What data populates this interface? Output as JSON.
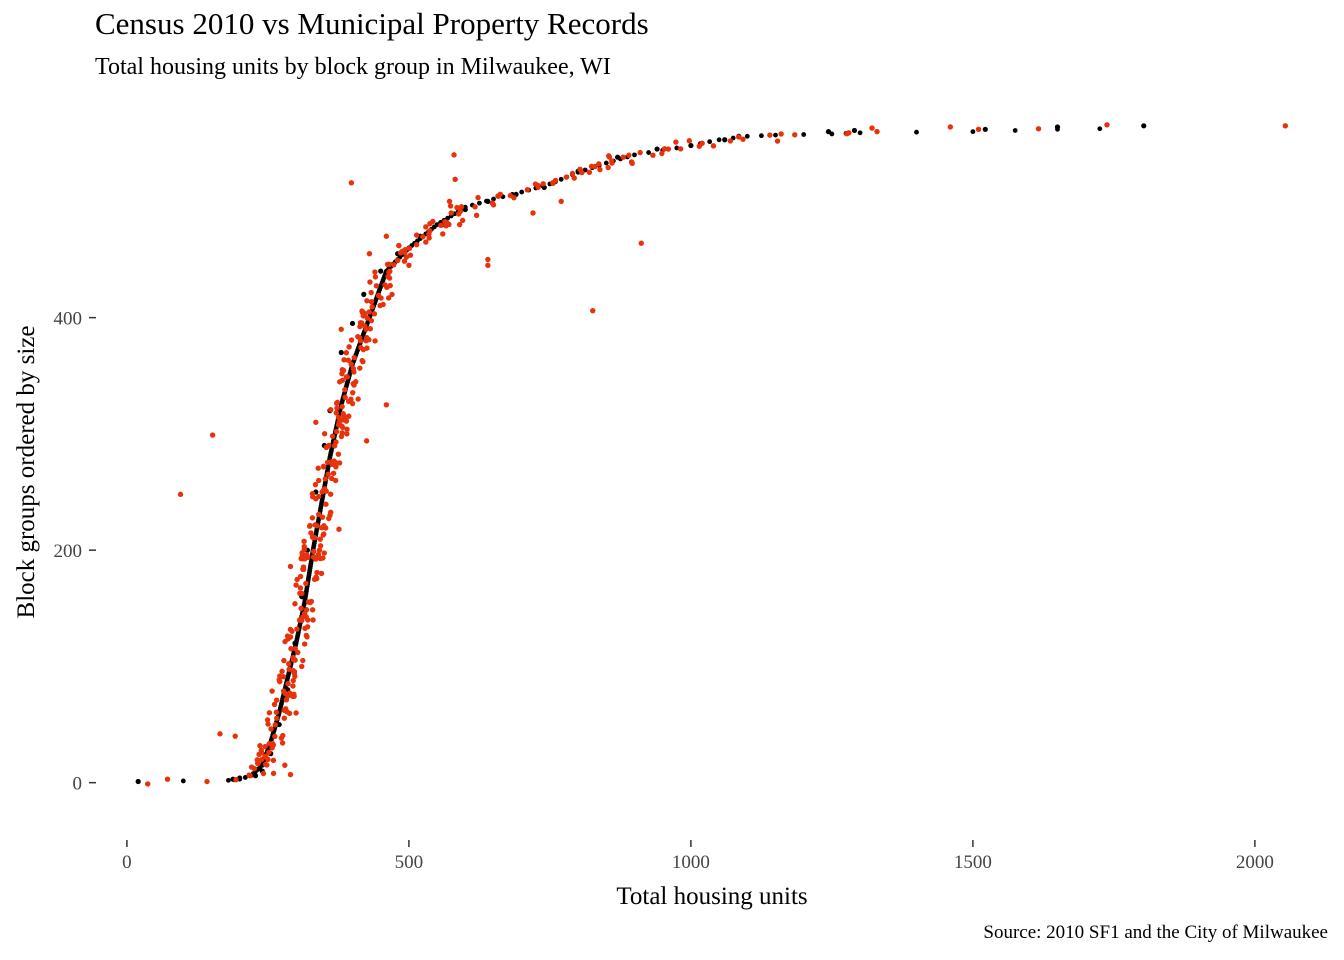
{
  "chart_data": {
    "type": "scatter",
    "title": "Census 2010 vs Municipal Property Records",
    "subtitle": "Total housing units by block group in Milwaukee, WI",
    "caption": "Source: 2010 SF1 and the City of Milwaukee",
    "xlabel": "Total housing units",
    "ylabel": "Block groups ordered by size",
    "xlim": [
      -30,
      2080
    ],
    "ylim": [
      -45,
      570
    ],
    "x_ticks": [
      0,
      500,
      1000,
      1500,
      2000
    ],
    "y_ticks": [
      0,
      200,
      400
    ],
    "grid": false,
    "legend": "none",
    "series": [
      {
        "color": "#000000",
        "curve": [
          [
            20,
            1
          ],
          [
            180,
            2
          ],
          [
            200,
            3
          ],
          [
            220,
            6
          ],
          [
            240,
            15
          ],
          [
            255,
            35
          ],
          [
            270,
            60
          ],
          [
            285,
            90
          ],
          [
            300,
            120
          ],
          [
            315,
            155
          ],
          [
            330,
            200
          ],
          [
            345,
            240
          ],
          [
            360,
            280
          ],
          [
            380,
            325
          ],
          [
            400,
            360
          ],
          [
            430,
            400
          ],
          [
            460,
            440
          ],
          [
            500,
            460
          ],
          [
            550,
            480
          ],
          [
            600,
            495
          ],
          [
            650,
            502
          ],
          [
            700,
            508
          ],
          [
            750,
            515
          ],
          [
            800,
            525
          ],
          [
            850,
            533
          ],
          [
            900,
            540
          ],
          [
            950,
            544
          ],
          [
            1000,
            548
          ],
          [
            1050,
            553
          ],
          [
            1100,
            556
          ],
          [
            1150,
            557
          ],
          [
            1250,
            558
          ],
          [
            1300,
            559
          ],
          [
            1500,
            560
          ],
          [
            1650,
            562
          ],
          [
            1800,
            563
          ]
        ],
        "points": [
          [
            20,
            1
          ],
          [
            188,
            3
          ],
          [
            200,
            4
          ],
          [
            1244,
            560
          ],
          [
            1290,
            561
          ],
          [
            1522,
            562
          ],
          [
            1650,
            564
          ],
          [
            1803,
            565
          ],
          [
            1085,
            556
          ],
          [
            1060,
            553
          ],
          [
            1000,
            548
          ],
          [
            940,
            545
          ],
          [
            870,
            538
          ],
          [
            800,
            526
          ],
          [
            740,
            512
          ],
          [
            690,
            506
          ],
          [
            640,
            500
          ],
          [
            600,
            493
          ],
          [
            560,
            480
          ],
          [
            520,
            470
          ],
          [
            480,
            455
          ],
          [
            450,
            440
          ],
          [
            420,
            420
          ],
          [
            400,
            395
          ],
          [
            380,
            370
          ],
          [
            360,
            320
          ],
          [
            350,
            290
          ],
          [
            335,
            250
          ],
          [
            320,
            200
          ],
          [
            310,
            160
          ],
          [
            298,
            120
          ],
          [
            285,
            80
          ],
          [
            270,
            50
          ],
          [
            255,
            25
          ],
          [
            240,
            10
          ],
          [
            228,
            6
          ]
        ]
      },
      {
        "color": "#e8320c",
        "points": [
          [
            72,
            3
          ],
          [
            142,
            1
          ],
          [
            165,
            42
          ],
          [
            192,
            40
          ],
          [
            95,
            248
          ],
          [
            152,
            299
          ],
          [
            398,
            516
          ],
          [
            580,
            540
          ],
          [
            582,
            519
          ],
          [
            572,
            500
          ],
          [
            575,
            490
          ],
          [
            912,
            464
          ],
          [
            826,
            406
          ],
          [
            425,
            294
          ],
          [
            377,
            275
          ],
          [
            376,
            218
          ],
          [
            460,
            325
          ],
          [
            640,
            450
          ],
          [
            640,
            445
          ],
          [
            720,
            490
          ],
          [
            770,
            500
          ],
          [
            820,
            525
          ],
          [
            860,
            533
          ],
          [
            960,
            545
          ],
          [
            1140,
            557
          ],
          [
            1160,
            558
          ],
          [
            1280,
            559
          ],
          [
            1330,
            560
          ],
          [
            1460,
            564
          ],
          [
            1510,
            562
          ],
          [
            2054,
            565
          ],
          [
            290,
            186
          ],
          [
            300,
            170
          ],
          [
            335,
            310
          ],
          [
            380,
            390
          ],
          [
            430,
            455
          ],
          [
            460,
            470
          ],
          [
            250,
            20
          ],
          [
            260,
            8
          ],
          [
            290,
            7
          ],
          [
            280,
            15
          ],
          [
            300,
            60
          ],
          [
            310,
            100
          ],
          [
            330,
            140
          ],
          [
            345,
            180
          ],
          [
            360,
            230
          ],
          [
            370,
            260
          ],
          [
            390,
            300
          ],
          [
            410,
            330
          ],
          [
            440,
            380
          ],
          [
            470,
            420
          ],
          [
            500,
            445
          ],
          [
            530,
            465
          ],
          [
            560,
            472
          ],
          [
            590,
            480
          ],
          [
            620,
            488
          ],
          [
            650,
            497
          ],
          [
            680,
            505
          ],
          [
            710,
            510
          ],
          [
            760,
            518
          ],
          [
            790,
            524
          ],
          [
            830,
            530
          ],
          [
            880,
            538
          ],
          [
            910,
            542
          ],
          [
            1020,
            550
          ],
          [
            1070,
            552
          ]
        ]
      }
    ]
  }
}
